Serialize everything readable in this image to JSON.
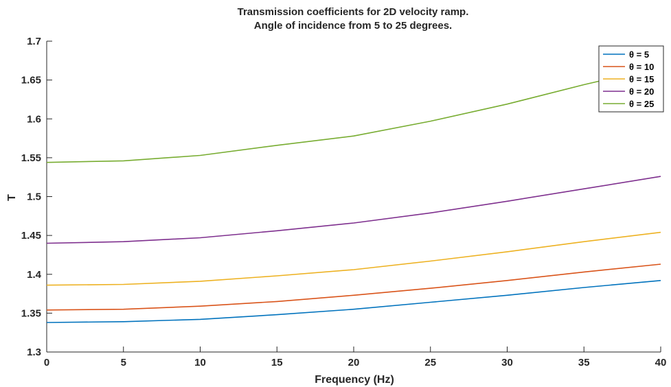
{
  "chart_data": {
    "type": "line",
    "title": "Transmission coefficients for 2D velocity ramp.",
    "subtitle": "Angle of incidence from 5 to 25 degrees.",
    "xlabel": "Frequency (Hz)",
    "ylabel": "T",
    "xlim": [
      0,
      40
    ],
    "ylim": [
      1.3,
      1.7
    ],
    "xticks": [
      0,
      5,
      10,
      15,
      20,
      25,
      30,
      35,
      40
    ],
    "xtick_labels": [
      "0",
      "5",
      "10",
      "15",
      "20",
      "25",
      "30",
      "35",
      "40"
    ],
    "yticks": [
      1.3,
      1.35,
      1.4,
      1.45,
      1.5,
      1.55,
      1.6,
      1.65,
      1.7
    ],
    "ytick_labels": [
      "1.3",
      "1.35",
      "1.4",
      "1.45",
      "1.5",
      "1.55",
      "1.6",
      "1.65",
      "1.7"
    ],
    "grid": false,
    "legend_position": "top-right",
    "x": [
      0,
      5,
      10,
      15,
      20,
      25,
      30,
      35,
      40
    ],
    "series": [
      {
        "name": "θ = 5",
        "color": "#0072BD",
        "values": [
          1.338,
          1.339,
          1.342,
          1.348,
          1.355,
          1.364,
          1.373,
          1.383,
          1.392
        ]
      },
      {
        "name": "θ = 10",
        "color": "#D95319",
        "values": [
          1.354,
          1.355,
          1.359,
          1.365,
          1.373,
          1.382,
          1.392,
          1.403,
          1.413
        ]
      },
      {
        "name": "θ = 15",
        "color": "#EDB120",
        "values": [
          1.386,
          1.387,
          1.391,
          1.398,
          1.406,
          1.417,
          1.429,
          1.442,
          1.454
        ]
      },
      {
        "name": "θ = 20",
        "color": "#7E2F8E",
        "values": [
          1.44,
          1.442,
          1.447,
          1.456,
          1.466,
          1.479,
          1.494,
          1.51,
          1.526
        ]
      },
      {
        "name": "θ = 25",
        "color": "#77AC30",
        "values": [
          1.544,
          1.546,
          1.553,
          1.566,
          1.578,
          1.597,
          1.619,
          1.644,
          1.667
        ]
      }
    ]
  }
}
